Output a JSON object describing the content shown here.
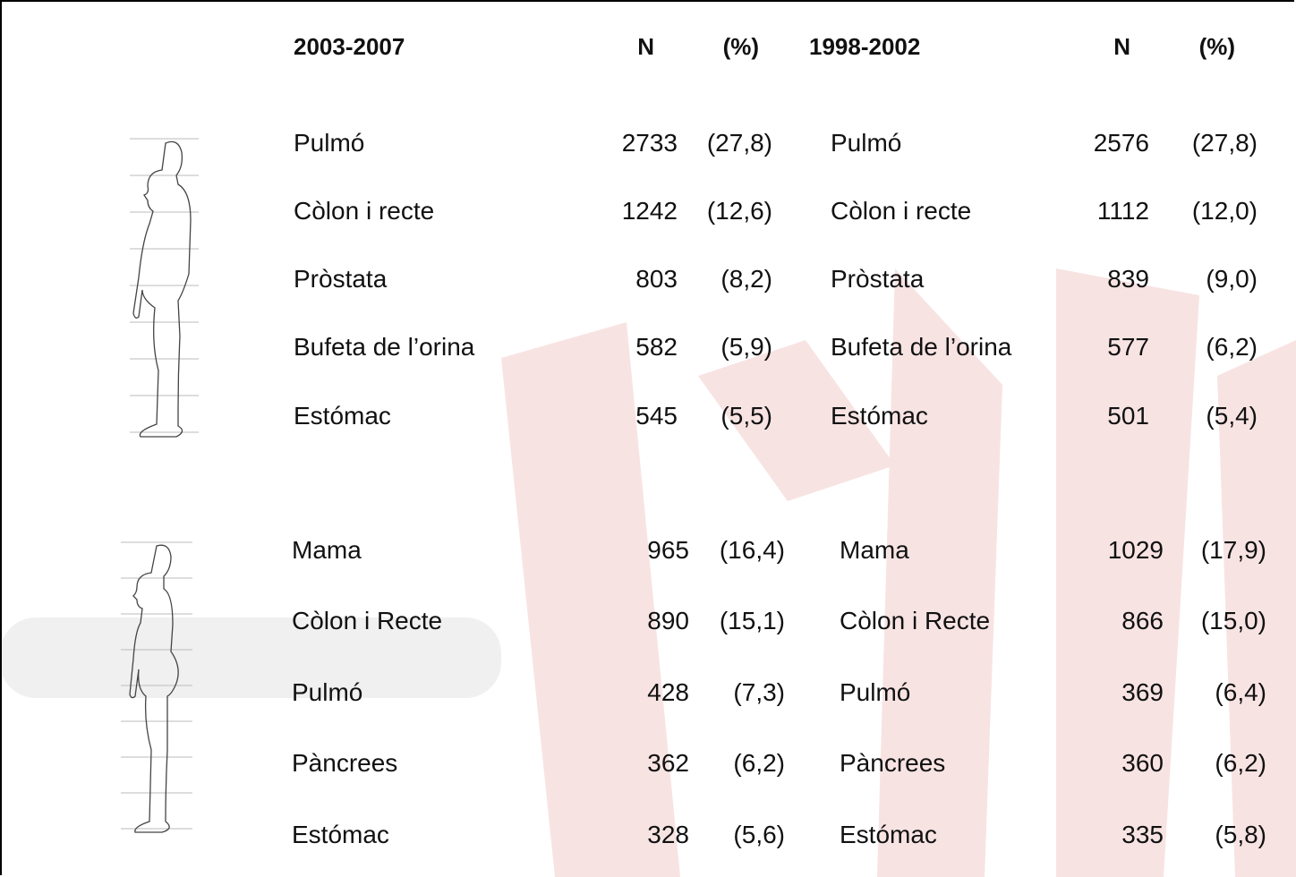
{
  "header": [
    "2003-2007",
    "N",
    "(%)",
    "1998-2002",
    "N",
    "(%)"
  ],
  "groups": [
    {
      "rows": [
        [
          "Pulmó",
          "2733",
          "(27,8)",
          "Pulmó",
          "2576",
          "(27,8)"
        ],
        [
          "Còlon i recte",
          "1242",
          "(12,6)",
          "Còlon i recte",
          "1112",
          "(12,0)"
        ],
        [
          "Pròstata",
          "803",
          "(8,2)",
          "Pròstata",
          "839",
          "(9,0)"
        ],
        [
          "Bufeta de l’orina",
          "582",
          "(5,9)",
          "Bufeta de l’orina",
          "577",
          "(6,2)"
        ],
        [
          "Estómac",
          "545",
          "(5,5)",
          "Estómac",
          "501",
          "(5,4)"
        ]
      ]
    },
    {
      "rows": [
        [
          "Mama",
          "965",
          "(16,4)",
          "Mama",
          "1029",
          "(17,9)"
        ],
        [
          "Còlon i Recte",
          "890",
          "(15,1)",
          "Còlon i Recte",
          "866",
          "(15,0)"
        ],
        [
          "Pulmó",
          "428",
          "(7,3)",
          "Pulmó",
          "369",
          "(6,4)"
        ],
        [
          "Pàncrees",
          "362",
          "(6,2)",
          "Pàncrees",
          "360",
          "(6,2)"
        ],
        [
          "Estómac",
          "328",
          "(5,6)",
          "Estómac",
          "335",
          "(5,8)"
        ]
      ]
    }
  ]
}
